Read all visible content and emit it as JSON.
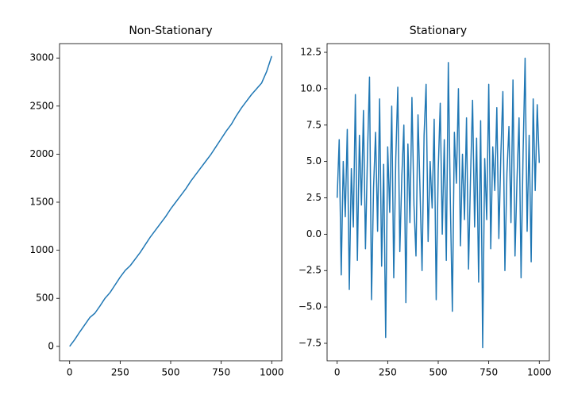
{
  "chart_data": [
    {
      "type": "line",
      "title": "Non-Stationary",
      "color": "#1f77b4",
      "x": [
        0,
        25,
        50,
        75,
        100,
        125,
        150,
        175,
        200,
        225,
        250,
        275,
        300,
        325,
        350,
        375,
        400,
        425,
        450,
        475,
        500,
        525,
        550,
        575,
        600,
        625,
        650,
        675,
        700,
        725,
        750,
        775,
        800,
        825,
        850,
        875,
        900,
        925,
        950,
        975,
        1000
      ],
      "values": [
        0,
        70,
        150,
        225,
        300,
        345,
        420,
        500,
        560,
        640,
        720,
        790,
        840,
        910,
        980,
        1060,
        1140,
        1210,
        1280,
        1350,
        1430,
        1500,
        1570,
        1640,
        1720,
        1790,
        1860,
        1930,
        2000,
        2080,
        2160,
        2240,
        2310,
        2400,
        2480,
        2550,
        2620,
        2680,
        2740,
        2860,
        3020
      ],
      "xlim": [
        -50,
        1050
      ],
      "xticks": [
        0,
        250,
        500,
        750,
        1000
      ],
      "ylim": [
        -150,
        3150
      ],
      "yticks": [
        0,
        500,
        1000,
        1500,
        2000,
        2500,
        3000
      ]
    },
    {
      "type": "line",
      "title": "Stationary",
      "color": "#1f77b4",
      "x": [
        0,
        10,
        20,
        30,
        40,
        50,
        60,
        70,
        80,
        90,
        100,
        110,
        120,
        130,
        140,
        150,
        160,
        170,
        180,
        190,
        200,
        210,
        220,
        230,
        240,
        250,
        260,
        270,
        280,
        290,
        300,
        310,
        320,
        330,
        340,
        350,
        360,
        370,
        380,
        390,
        400,
        410,
        420,
        430,
        440,
        450,
        460,
        470,
        480,
        490,
        500,
        510,
        520,
        530,
        540,
        550,
        560,
        570,
        580,
        590,
        600,
        610,
        620,
        630,
        640,
        650,
        660,
        670,
        680,
        690,
        700,
        710,
        720,
        730,
        740,
        750,
        760,
        770,
        780,
        790,
        800,
        810,
        820,
        830,
        840,
        850,
        860,
        870,
        880,
        890,
        900,
        910,
        920,
        930,
        940,
        950,
        960,
        970,
        980,
        990,
        1000
      ],
      "values": [
        2.5,
        6.5,
        -2.8,
        5.0,
        1.2,
        7.2,
        -3.8,
        4.5,
        0.5,
        9.6,
        -1.8,
        6.8,
        2.0,
        8.5,
        -1.0,
        5.5,
        10.8,
        -4.5,
        3.2,
        7.0,
        0.2,
        9.3,
        -2.2,
        4.8,
        -7.1,
        6.0,
        1.5,
        8.8,
        -3.0,
        5.2,
        10.1,
        -1.2,
        4.0,
        7.5,
        -4.7,
        6.2,
        0.8,
        9.4,
        2.0,
        -1.5,
        8.2,
        3.0,
        -2.5,
        6.8,
        10.3,
        -0.5,
        5.0,
        1.8,
        7.9,
        -4.5,
        4.4,
        9.0,
        0.0,
        6.5,
        -1.8,
        11.8,
        2.2,
        -5.3,
        7.0,
        3.5,
        10.0,
        -0.8,
        5.5,
        1.0,
        8.0,
        -2.4,
        4.0,
        9.2,
        0.5,
        6.6,
        -3.3,
        7.8,
        -7.8,
        5.2,
        1.0,
        10.3,
        -1.0,
        6.0,
        3.0,
        8.7,
        -0.3,
        5.5,
        9.8,
        -2.5,
        4.2,
        7.4,
        0.8,
        10.6,
        -1.5,
        3.8,
        8.0,
        -3.0,
        5.6,
        12.1,
        0.2,
        6.8,
        -1.9,
        9.3,
        3.0,
        8.9,
        4.9
      ],
      "xlim": [
        -50,
        1050
      ],
      "xticks": [
        0,
        250,
        500,
        750,
        1000
      ],
      "ylim": [
        -8.7,
        13.1
      ],
      "yticks": [
        {
          "value": -7.5,
          "label": "−7.5"
        },
        {
          "value": -5,
          "label": "−5.0"
        },
        {
          "value": -2.5,
          "label": "−2.5"
        },
        {
          "value": 0,
          "label": "0.0"
        },
        2.5,
        {
          "value": 5,
          "label": "5.0"
        },
        7.5,
        {
          "value": 10,
          "label": "10.0"
        },
        12.5
      ]
    }
  ]
}
